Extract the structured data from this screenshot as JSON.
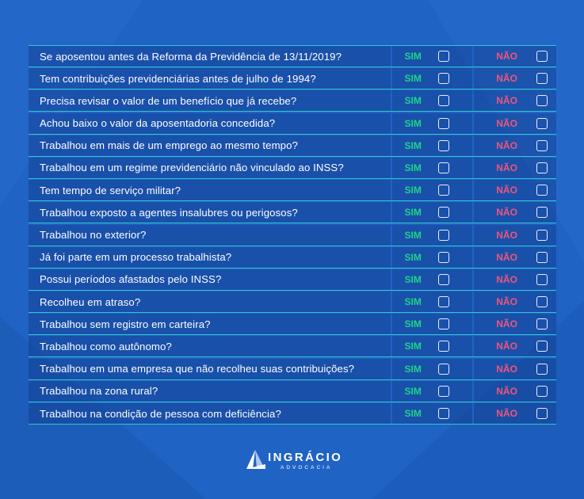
{
  "colors": {
    "background": "#1f63c4",
    "row_fill": "#16459a",
    "divider": "#2fc7cf",
    "yes": "#21d38a",
    "no": "#f2557a"
  },
  "labels": {
    "yes": "SIM",
    "no": "NÃO"
  },
  "questions": [
    "Se aposentou antes da Reforma da Previdência de 13/11/2019?",
    "Tem contribuições previdenciárias antes de julho de 1994?",
    "Precisa revisar o valor de um benefício que já recebe?",
    "Achou baixo o valor da aposentadoria concedida?",
    "Trabalhou em mais de um emprego ao mesmo tempo?",
    "Trabalhou em um regime previdenciário não vinculado ao INSS?",
    "Tem tempo de serviço militar?",
    "Trabalhou exposto a agentes insalubres ou perigosos?",
    "Trabalhou no exterior?",
    "Já foi parte em um processo trabalhista?",
    "Possui períodos afastados pelo INSS?",
    "Recolheu em atraso?",
    "Trabalhou sem registro em carteira?",
    "Trabalhou como autônomo?",
    "Trabalhou em uma empresa que não recolheu suas contribuições?",
    "Trabalhou na zona rural?",
    "Trabalhou na condição de pessoa com deficiência?"
  ],
  "logo": {
    "name": "INGRÁCIO",
    "tagline": "ADVOCACIA",
    "mark": "logo-icon"
  }
}
